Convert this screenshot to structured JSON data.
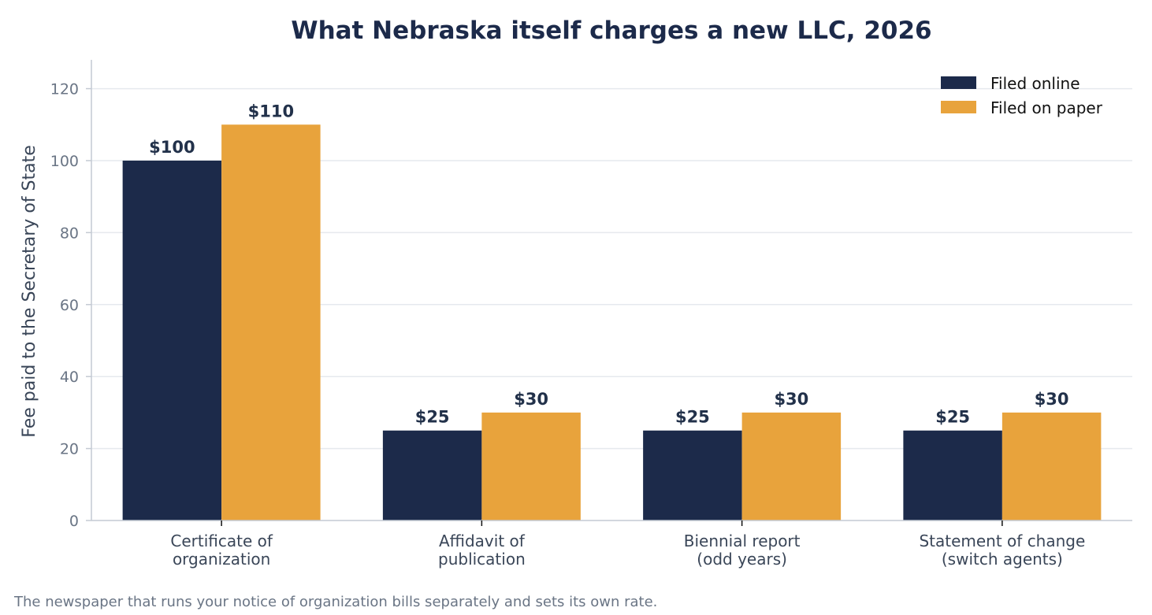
{
  "chart_data": {
    "type": "bar",
    "title": "What Nebraska itself charges a new LLC, 2026",
    "xlabel": "",
    "ylabel": "Fee paid to the Secretary of State",
    "categories": [
      [
        "Certificate of",
        "organization"
      ],
      [
        "Affidavit of",
        "publication"
      ],
      [
        "Biennial report",
        "(odd years)"
      ],
      [
        "Statement of change",
        "(switch agents)"
      ]
    ],
    "series": [
      {
        "name": "Filed online",
        "color": "#1c2a4a",
        "values": [
          100,
          25,
          25,
          25
        ],
        "labels": [
          "$100",
          "$25",
          "$25",
          "$25"
        ]
      },
      {
        "name": "Filed on paper",
        "color": "#e8a33c",
        "values": [
          110,
          30,
          30,
          30
        ],
        "labels": [
          "$110",
          "$30",
          "$30",
          "$30"
        ]
      }
    ],
    "ylim": [
      0,
      128
    ],
    "yticks": [
      0,
      20,
      40,
      60,
      80,
      100,
      120
    ],
    "grid": true,
    "legend": "top-right",
    "note": "The newspaper that runs your notice of organization bills separately and sets its own rate."
  }
}
